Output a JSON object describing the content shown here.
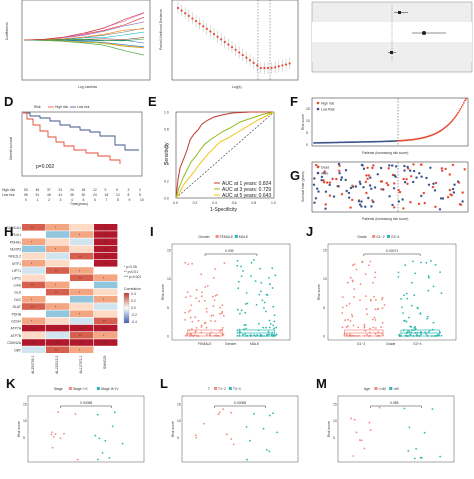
{
  "panels": {
    "D": {
      "letter": "D",
      "legend": [
        "Risk",
        "High risk",
        "Low risk"
      ],
      "pvalue": "p=0.002",
      "ylabel": "Overall survival",
      "xlabel": "Time(years)",
      "risk_rows": [
        "High risk",
        "Low risk"
      ],
      "xticks": [
        "0",
        "1",
        "2",
        "3",
        "4",
        "5",
        "6",
        "7",
        "8",
        "9",
        "10"
      ],
      "colors": {
        "high": "#e64b35",
        "low": "#3c5488"
      }
    },
    "E": {
      "letter": "E",
      "ylabel": "Sensitivity",
      "xlabel": "1-Specificity",
      "ticks": [
        "0.0",
        "0.2",
        "0.4",
        "0.6",
        "0.8",
        "1.0"
      ],
      "legend": [
        {
          "label": "AUC at 1 years: 0.824",
          "color": "#c0392b"
        },
        {
          "label": "AUC at 3 years: 0.729",
          "color": "#8fbc1f"
        },
        {
          "label": "AUC at 5 years: 0.643",
          "color": "#f0c419"
        }
      ]
    },
    "F": {
      "letter": "F",
      "legend": [
        "High risk",
        "Low Risk"
      ],
      "ylabel": "Risk score",
      "xlabel": "Patients (increasing risk score)",
      "yticks": [
        "0",
        "5",
        "10",
        "15"
      ],
      "xticks": [
        "0",
        "100",
        "200",
        "300",
        "400"
      ]
    },
    "G": {
      "letter": "G",
      "legend": [
        "Dead",
        "Alive"
      ],
      "ylabel": "Survival time (years)",
      "xlabel": "Patients (increasing risk score)",
      "yticks": [
        "0",
        "2",
        "4",
        "6",
        "8",
        "10"
      ],
      "xticks": [
        "0",
        "100",
        "200",
        "300",
        "400"
      ]
    },
    "H": {
      "letter": "H",
      "genes": [
        "SLC31A1",
        "FDX1",
        "PDHA1",
        "NLRP3",
        "NFE2L2",
        "MTF1",
        "LIPT1",
        "LIPT2",
        "LIAS",
        "GLS",
        "DLD",
        "DLAT",
        "PDHB",
        "GCSH",
        "ATP7A",
        "ATP7B",
        "CDKN2A",
        "DBT"
      ],
      "columns": [
        "AL353759.1",
        "AL133215.2",
        "AL117372.1",
        "SNHG29"
      ],
      "legend_title": "Correlation",
      "legend_stars": [
        "* p<0.05",
        "** p<0.01",
        "*** p<0.001"
      ],
      "scale": [
        "0.4",
        "0.2",
        "0.0",
        "-0.2",
        "-0.4"
      ]
    },
    "I": {
      "letter": "I",
      "legend_title": "Gender",
      "groups": [
        "FEMALE",
        "MALE"
      ],
      "pvalue": "0.039",
      "xlabel": "Gender",
      "ylabel": "Risk score",
      "yticks": [
        "0",
        "5",
        "10",
        "15"
      ]
    },
    "J": {
      "letter": "J",
      "legend_title": "Grade",
      "groups": [
        "G1~2",
        "G3~4"
      ],
      "pvalue": "0.00071",
      "xlabel": "Grade",
      "ylabel": "Risk score",
      "yticks": [
        "0",
        "5",
        "10",
        "15"
      ]
    },
    "K": {
      "letter": "K",
      "legend_title": "Stage",
      "groups": [
        "Stage I~II",
        "Stage III~IV"
      ],
      "pvalue": "0.00058",
      "ylabel": "Risk score",
      "yticks": [
        "15",
        "10",
        "5"
      ]
    },
    "L": {
      "letter": "L",
      "legend_title": "T",
      "groups": [
        "T1~2",
        "T3~4"
      ],
      "pvalue": "0.00085",
      "ylabel": "Risk score",
      "yticks": [
        "15",
        "10",
        "5"
      ]
    },
    "M": {
      "letter": "M",
      "legend_title": "Age",
      "groups": [
        "<=60",
        ">60"
      ],
      "pvalue": "0.085",
      "ylabel": "Risk score",
      "yticks": [
        "15",
        "10",
        "5"
      ]
    }
  }
}
